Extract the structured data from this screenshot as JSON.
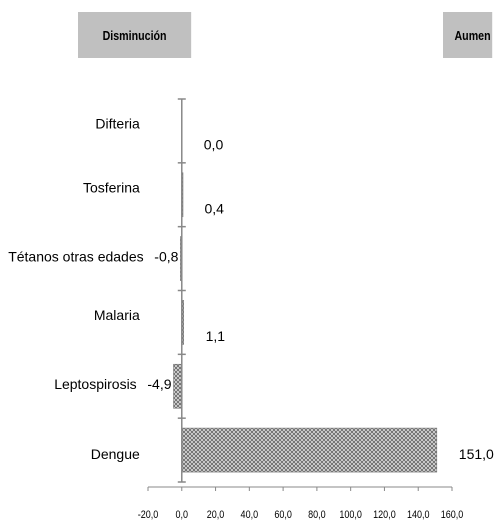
{
  "legend": {
    "decrease_label": "Disminución",
    "increase_label": "Aumen"
  },
  "chart_data": {
    "type": "bar",
    "orientation": "horizontal",
    "categories": [
      "Difteria",
      "Tosferina",
      "Tétanos otras edades",
      "Malaria",
      "Leptospirosis",
      "Dengue"
    ],
    "values": [
      0.0,
      0.4,
      -0.8,
      1.1,
      -4.9,
      151.0
    ],
    "value_labels": [
      "0,0",
      "0,4",
      "-0,8",
      "1,1",
      "-4,9",
      "151,0"
    ],
    "xlim": [
      -20,
      160
    ],
    "xticks": [
      -20,
      0,
      20,
      40,
      60,
      80,
      100,
      120,
      140,
      160
    ],
    "xtick_labels": [
      "-20,0",
      "0,0",
      "20,0",
      "40,0",
      "60,0",
      "80,0",
      "100,0",
      "120,0",
      "140,0",
      "160,0"
    ],
    "bar_pattern": "crosshatch",
    "grid": false,
    "title": "",
    "xlabel": "",
    "ylabel": ""
  }
}
